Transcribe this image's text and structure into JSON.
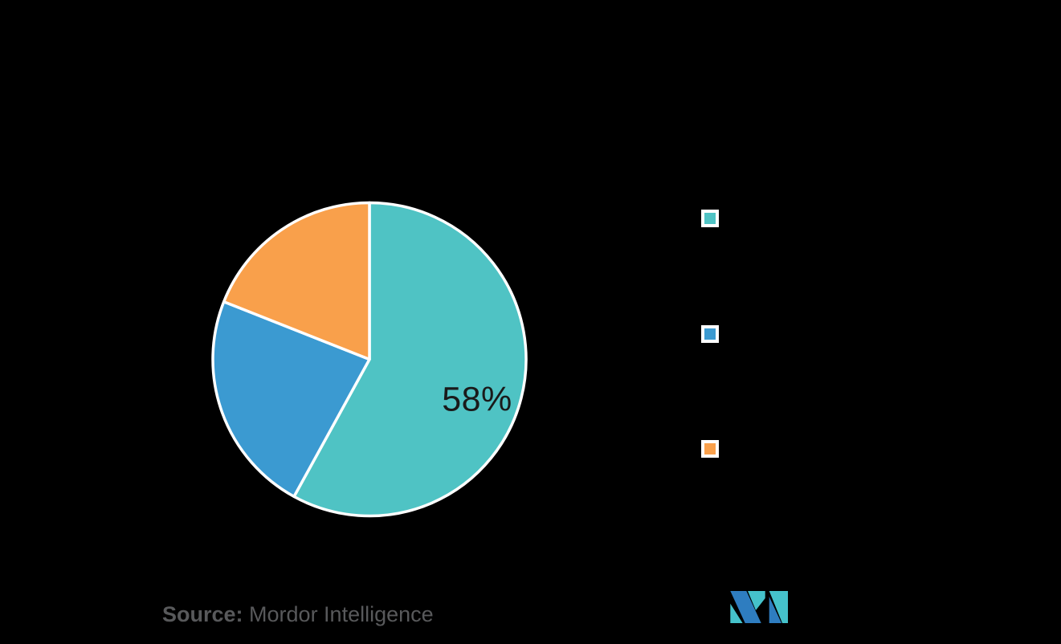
{
  "background_color": "#000000",
  "chart_data": {
    "type": "pie",
    "title": "",
    "series": [
      {
        "name": "teal",
        "value": 58,
        "label": "58%",
        "color": "#4FC3C4"
      },
      {
        "name": "blue",
        "value": 23,
        "label": "",
        "color": "#3B9AD1"
      },
      {
        "name": "orange",
        "value": 19,
        "label": "",
        "color": "#F9A04B"
      }
    ],
    "start_angle_deg": 0,
    "direction": "clockwise",
    "slice_stroke_color": "#FFFFFF",
    "legend_position": "right",
    "legend_labels_visible": false,
    "data_label_color": "#1A1A1A",
    "only_largest_slice_labeled": true
  },
  "footer": {
    "source_label": "Source:",
    "source_text": " Mordor Intelligence",
    "source_color": "#58595B"
  },
  "logo": {
    "name": "mordor-intelligence-logo",
    "teal": "#45C2CB",
    "blue": "#2E7DC0"
  }
}
